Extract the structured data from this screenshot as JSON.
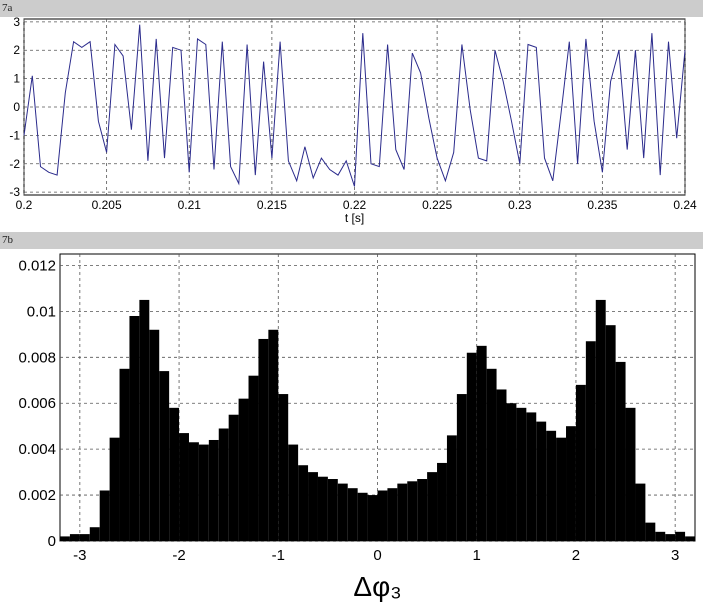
{
  "figure_labels": {
    "top": "7a",
    "bottom": "7b"
  },
  "chart_data": [
    {
      "type": "line",
      "title": "",
      "xlabel": "t [s]",
      "ylabel": "",
      "xlim": [
        0.2,
        0.24
      ],
      "ylim": [
        -3.1,
        3.1
      ],
      "xticks": [
        "0.2",
        "0.205",
        "0.21",
        "0.215",
        "0.22",
        "0.225",
        "0.23",
        "0.235",
        "0.24"
      ],
      "yticks": [
        "3",
        "2",
        "1",
        "0",
        "-1",
        "-2",
        "-3"
      ],
      "grid": true,
      "line_color": "#2b2b8c",
      "series": [
        {
          "x": [
            0.2,
            0.2005,
            0.201,
            0.2015,
            0.202,
            0.2025,
            0.203,
            0.2035,
            0.204,
            0.2045,
            0.205,
            0.2055,
            0.206,
            0.2065,
            0.207,
            0.2075,
            0.208,
            0.2085,
            0.209,
            0.2095,
            0.21,
            0.2105,
            0.211,
            0.2115,
            0.212,
            0.2125,
            0.213,
            0.2135,
            0.214,
            0.2145,
            0.215,
            0.2155,
            0.216,
            0.2165,
            0.217,
            0.2175,
            0.218,
            0.2185,
            0.219,
            0.2195,
            0.22,
            0.2205,
            0.221,
            0.2215,
            0.222,
            0.2225,
            0.223,
            0.2235,
            0.224,
            0.2245,
            0.225,
            0.2255,
            0.226,
            0.2265,
            0.227,
            0.2275,
            0.228,
            0.2285,
            0.229,
            0.2295,
            0.23,
            0.2305,
            0.231,
            0.2315,
            0.232,
            0.2325,
            0.233,
            0.2335,
            0.234,
            0.2345,
            0.235,
            0.2355,
            0.236,
            0.2365,
            0.237,
            0.2375,
            0.238,
            0.2385,
            0.239,
            0.2395,
            0.24
          ],
          "y": [
            -1.0,
            1.1,
            -2.1,
            -2.3,
            -2.4,
            0.5,
            2.3,
            2.1,
            2.3,
            -0.5,
            -1.6,
            2.2,
            1.8,
            -0.8,
            2.9,
            -1.9,
            2.4,
            -1.8,
            2.1,
            2.0,
            -2.3,
            2.4,
            2.2,
            -2.2,
            2.3,
            -2.1,
            -2.7,
            2.2,
            -2.4,
            1.6,
            -1.8,
            2.3,
            -1.9,
            -2.6,
            -1.4,
            -2.5,
            -1.8,
            -2.2,
            -2.4,
            -1.9,
            -2.8,
            2.6,
            -2.0,
            -2.1,
            2.2,
            -1.5,
            -2.2,
            1.9,
            1.2,
            -0.4,
            -1.8,
            -2.6,
            -1.6,
            2.2,
            -0.1,
            -1.8,
            -1.9,
            2.0,
            0.9,
            -0.5,
            -2.0,
            2.2,
            2.1,
            -1.8,
            -2.6,
            -0.2,
            2.3,
            -2.0,
            2.4,
            -0.5,
            -2.3,
            0.9,
            2.0,
            -1.5,
            2.0,
            -1.8,
            2.6,
            -2.4,
            2.3,
            -1.1,
            2.0
          ]
        }
      ]
    },
    {
      "type": "bar",
      "title": "",
      "xlabel": "Δφ₃",
      "ylabel": "",
      "xlim": [
        -3.2,
        3.2
      ],
      "ylim": [
        0,
        0.0125
      ],
      "xticks": [
        "-3",
        "-2",
        "-1",
        "0",
        "1",
        "2",
        "3"
      ],
      "yticks": [
        "0.012",
        "0.01",
        "0.008",
        "0.006",
        "0.004",
        "0.002",
        "0"
      ],
      "grid": true,
      "bar_color": "#000000",
      "bin_width": 0.1,
      "x": [
        -3.15,
        -3.05,
        -2.95,
        -2.85,
        -2.75,
        -2.65,
        -2.55,
        -2.45,
        -2.35,
        -2.25,
        -2.15,
        -2.05,
        -1.95,
        -1.85,
        -1.75,
        -1.65,
        -1.55,
        -1.45,
        -1.35,
        -1.25,
        -1.15,
        -1.05,
        -0.95,
        -0.85,
        -0.75,
        -0.65,
        -0.55,
        -0.45,
        -0.35,
        -0.25,
        -0.15,
        -0.05,
        0.05,
        0.15,
        0.25,
        0.35,
        0.45,
        0.55,
        0.65,
        0.75,
        0.85,
        0.95,
        1.05,
        1.15,
        1.25,
        1.35,
        1.45,
        1.55,
        1.65,
        1.75,
        1.85,
        1.95,
        2.05,
        2.15,
        2.25,
        2.35,
        2.45,
        2.55,
        2.65,
        2.75,
        2.85,
        2.95,
        3.05,
        3.15
      ],
      "values": [
        0.0002,
        0.0003,
        0.0003,
        0.0006,
        0.0022,
        0.0045,
        0.0075,
        0.0098,
        0.0105,
        0.0092,
        0.0074,
        0.0058,
        0.0047,
        0.0043,
        0.0042,
        0.0044,
        0.0049,
        0.0055,
        0.0062,
        0.0072,
        0.0088,
        0.0092,
        0.0064,
        0.0042,
        0.0033,
        0.003,
        0.0028,
        0.0027,
        0.0025,
        0.0023,
        0.0021,
        0.002,
        0.0022,
        0.0023,
        0.0025,
        0.0026,
        0.0027,
        0.003,
        0.0034,
        0.0046,
        0.0064,
        0.0082,
        0.0085,
        0.0075,
        0.0066,
        0.006,
        0.0058,
        0.0056,
        0.0052,
        0.0048,
        0.0045,
        0.005,
        0.0068,
        0.0087,
        0.0105,
        0.0094,
        0.0078,
        0.0058,
        0.0025,
        0.0008,
        0.0004,
        0.0003,
        0.0004,
        0.0002
      ]
    }
  ]
}
